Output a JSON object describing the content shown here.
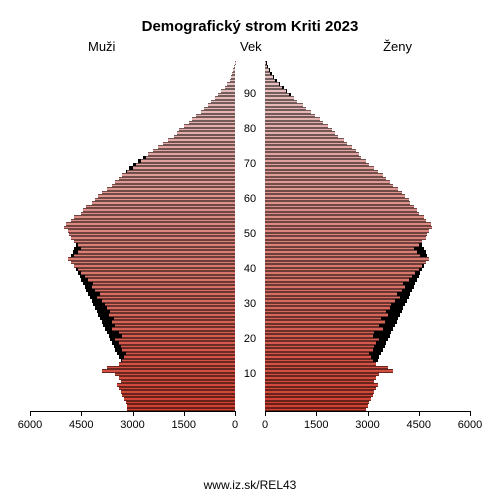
{
  "title": "Demografický strom Kriti 2023",
  "labels": {
    "left": "Muži",
    "center": "Vek",
    "right": "Ženy"
  },
  "source": "www.iz.sk/REL43",
  "chart": {
    "type": "population-pyramid",
    "x_max": 6000,
    "x_ticks": [
      0,
      1500,
      3000,
      4500,
      6000
    ],
    "y_ticks": [
      10,
      20,
      30,
      40,
      50,
      60,
      70,
      80,
      90
    ],
    "y_tick_fontsize": 11,
    "x_tick_fontsize": 11,
    "title_fontsize": 15,
    "label_fontsize": 13,
    "background_color": "#ffffff",
    "axis_color": "#000000",
    "shadow_color": "#000000",
    "gradient_top": "#e8c8c8",
    "gradient_bottom": "#d04030",
    "bar_border_color": "#000000",
    "ages": [
      {
        "age": 0,
        "m": 3150,
        "f": 2950,
        "sm": 2700,
        "sf": 2600
      },
      {
        "age": 1,
        "m": 3150,
        "f": 3000,
        "sm": 2750,
        "sf": 2650
      },
      {
        "age": 2,
        "m": 3200,
        "f": 3050,
        "sm": 2800,
        "sf": 2700
      },
      {
        "age": 3,
        "m": 3250,
        "f": 3100,
        "sm": 2800,
        "sf": 2750
      },
      {
        "age": 4,
        "m": 3300,
        "f": 3150,
        "sm": 2850,
        "sf": 2800
      },
      {
        "age": 5,
        "m": 3350,
        "f": 3200,
        "sm": 2900,
        "sf": 2850
      },
      {
        "age": 6,
        "m": 3400,
        "f": 3250,
        "sm": 2950,
        "sf": 2900
      },
      {
        "age": 7,
        "m": 3450,
        "f": 3300,
        "sm": 3000,
        "sf": 2950
      },
      {
        "age": 8,
        "m": 3350,
        "f": 3200,
        "sm": 3050,
        "sf": 3000
      },
      {
        "age": 9,
        "m": 3400,
        "f": 3250,
        "sm": 3100,
        "sf": 3050
      },
      {
        "age": 10,
        "m": 3500,
        "f": 3350,
        "sm": 3150,
        "sf": 3100
      },
      {
        "age": 11,
        "m": 3900,
        "f": 3750,
        "sm": 3200,
        "sf": 3150
      },
      {
        "age": 12,
        "m": 3750,
        "f": 3600,
        "sm": 3250,
        "sf": 3200
      },
      {
        "age": 13,
        "m": 3400,
        "f": 3250,
        "sm": 3300,
        "sf": 3250
      },
      {
        "age": 14,
        "m": 3300,
        "f": 3150,
        "sm": 3350,
        "sf": 3300
      },
      {
        "age": 15,
        "m": 3250,
        "f": 3100,
        "sm": 3400,
        "sf": 3350
      },
      {
        "age": 16,
        "m": 3200,
        "f": 3050,
        "sm": 3450,
        "sf": 3400
      },
      {
        "age": 17,
        "m": 3300,
        "f": 3150,
        "sm": 3500,
        "sf": 3450
      },
      {
        "age": 18,
        "m": 3350,
        "f": 3200,
        "sm": 3550,
        "sf": 3500
      },
      {
        "age": 19,
        "m": 3400,
        "f": 3250,
        "sm": 3600,
        "sf": 3550
      },
      {
        "age": 20,
        "m": 3500,
        "f": 3350,
        "sm": 3650,
        "sf": 3600
      },
      {
        "age": 21,
        "m": 3300,
        "f": 3150,
        "sm": 3700,
        "sf": 3650
      },
      {
        "age": 22,
        "m": 3400,
        "f": 3200,
        "sm": 3750,
        "sf": 3700
      },
      {
        "age": 23,
        "m": 3600,
        "f": 3450,
        "sm": 3800,
        "sf": 3750
      },
      {
        "age": 24,
        "m": 3500,
        "f": 3350,
        "sm": 3850,
        "sf": 3800
      },
      {
        "age": 25,
        "m": 3600,
        "f": 3500,
        "sm": 3900,
        "sf": 3850
      },
      {
        "age": 26,
        "m": 3550,
        "f": 3400,
        "sm": 3950,
        "sf": 3900
      },
      {
        "age": 27,
        "m": 3700,
        "f": 3600,
        "sm": 4000,
        "sf": 3950
      },
      {
        "age": 28,
        "m": 3650,
        "f": 3550,
        "sm": 4050,
        "sf": 4000
      },
      {
        "age": 29,
        "m": 3750,
        "f": 3650,
        "sm": 4100,
        "sf": 4050
      },
      {
        "age": 30,
        "m": 3800,
        "f": 3700,
        "sm": 4150,
        "sf": 4100
      },
      {
        "age": 31,
        "m": 3900,
        "f": 3800,
        "sm": 4200,
        "sf": 4150
      },
      {
        "age": 32,
        "m": 4050,
        "f": 3950,
        "sm": 4250,
        "sf": 4200
      },
      {
        "age": 33,
        "m": 3950,
        "f": 3850,
        "sm": 4300,
        "sf": 4250
      },
      {
        "age": 34,
        "m": 4100,
        "f": 4000,
        "sm": 4350,
        "sf": 4300
      },
      {
        "age": 35,
        "m": 4200,
        "f": 4100,
        "sm": 4400,
        "sf": 4350
      },
      {
        "age": 36,
        "m": 4150,
        "f": 4050,
        "sm": 4450,
        "sf": 4400
      },
      {
        "age": 37,
        "m": 4300,
        "f": 4200,
        "sm": 4500,
        "sf": 4450
      },
      {
        "age": 38,
        "m": 4400,
        "f": 4300,
        "sm": 4550,
        "sf": 4500
      },
      {
        "age": 39,
        "m": 4500,
        "f": 4400,
        "sm": 4600,
        "sf": 4550
      },
      {
        "age": 40,
        "m": 4600,
        "f": 4500,
        "sm": 4650,
        "sf": 4600
      },
      {
        "age": 41,
        "m": 4700,
        "f": 4600,
        "sm": 4700,
        "sf": 4650
      },
      {
        "age": 42,
        "m": 4800,
        "f": 4700,
        "sm": 4750,
        "sf": 4700
      },
      {
        "age": 43,
        "m": 4900,
        "f": 4800,
        "sm": 4800,
        "sf": 4750
      },
      {
        "age": 44,
        "m": 4700,
        "f": 4550,
        "sm": 4800,
        "sf": 4750
      },
      {
        "age": 45,
        "m": 4600,
        "f": 4450,
        "sm": 4750,
        "sf": 4700
      },
      {
        "age": 46,
        "m": 4500,
        "f": 4350,
        "sm": 4700,
        "sf": 4650
      },
      {
        "age": 47,
        "m": 4600,
        "f": 4500,
        "sm": 4650,
        "sf": 4600
      },
      {
        "age": 48,
        "m": 4700,
        "f": 4600,
        "sm": 4600,
        "sf": 4550
      },
      {
        "age": 49,
        "m": 4800,
        "f": 4700,
        "sm": 4550,
        "sf": 4500
      },
      {
        "age": 50,
        "m": 4850,
        "f": 4750,
        "sm": 4500,
        "sf": 4450
      },
      {
        "age": 51,
        "m": 4900,
        "f": 4800,
        "sm": 4450,
        "sf": 4400
      },
      {
        "age": 52,
        "m": 5000,
        "f": 4900,
        "sm": 4400,
        "sf": 4350
      },
      {
        "age": 53,
        "m": 4950,
        "f": 4850,
        "sm": 4350,
        "sf": 4300
      },
      {
        "age": 54,
        "m": 4800,
        "f": 4700,
        "sm": 4300,
        "sf": 4250
      },
      {
        "age": 55,
        "m": 4700,
        "f": 4650,
        "sm": 4250,
        "sf": 4200
      },
      {
        "age": 56,
        "m": 4500,
        "f": 4500,
        "sm": 4200,
        "sf": 4150
      },
      {
        "age": 57,
        "m": 4450,
        "f": 4450,
        "sm": 4150,
        "sf": 4100
      },
      {
        "age": 58,
        "m": 4350,
        "f": 4350,
        "sm": 4100,
        "sf": 4050
      },
      {
        "age": 59,
        "m": 4200,
        "f": 4250,
        "sm": 4050,
        "sf": 4000
      },
      {
        "age": 60,
        "m": 4100,
        "f": 4200,
        "sm": 4000,
        "sf": 3950
      },
      {
        "age": 61,
        "m": 4000,
        "f": 4100,
        "sm": 3900,
        "sf": 3850
      },
      {
        "age": 62,
        "m": 3900,
        "f": 4000,
        "sm": 3800,
        "sf": 3750
      },
      {
        "age": 63,
        "m": 3750,
        "f": 3900,
        "sm": 3700,
        "sf": 3650
      },
      {
        "age": 64,
        "m": 3600,
        "f": 3750,
        "sm": 3600,
        "sf": 3550
      },
      {
        "age": 65,
        "m": 3500,
        "f": 3650,
        "sm": 3500,
        "sf": 3450
      },
      {
        "age": 66,
        "m": 3400,
        "f": 3550,
        "sm": 3400,
        "sf": 3350
      },
      {
        "age": 67,
        "m": 3300,
        "f": 3450,
        "sm": 3300,
        "sf": 3250
      },
      {
        "age": 68,
        "m": 3150,
        "f": 3300,
        "sm": 3200,
        "sf": 3150
      },
      {
        "age": 69,
        "m": 3000,
        "f": 3200,
        "sm": 3100,
        "sf": 3050
      },
      {
        "age": 70,
        "m": 2900,
        "f": 3050,
        "sm": 3000,
        "sf": 2950
      },
      {
        "age": 71,
        "m": 2750,
        "f": 2950,
        "sm": 2850,
        "sf": 2800
      },
      {
        "age": 72,
        "m": 2600,
        "f": 2800,
        "sm": 2700,
        "sf": 2650
      },
      {
        "age": 73,
        "m": 2550,
        "f": 2750,
        "sm": 2550,
        "sf": 2500
      },
      {
        "age": 74,
        "m": 2400,
        "f": 2650,
        "sm": 2400,
        "sf": 2350
      },
      {
        "age": 75,
        "m": 2250,
        "f": 2550,
        "sm": 2250,
        "sf": 2250
      },
      {
        "age": 76,
        "m": 2100,
        "f": 2400,
        "sm": 2100,
        "sf": 2150
      },
      {
        "age": 77,
        "m": 1950,
        "f": 2300,
        "sm": 1950,
        "sf": 2050
      },
      {
        "age": 78,
        "m": 1800,
        "f": 2150,
        "sm": 1800,
        "sf": 1950
      },
      {
        "age": 79,
        "m": 1700,
        "f": 2050,
        "sm": 1650,
        "sf": 1850
      },
      {
        "age": 80,
        "m": 1650,
        "f": 1950,
        "sm": 1500,
        "sf": 1750
      },
      {
        "age": 81,
        "m": 1500,
        "f": 1850,
        "sm": 1350,
        "sf": 1650
      },
      {
        "age": 82,
        "m": 1350,
        "f": 1700,
        "sm": 1200,
        "sf": 1550
      },
      {
        "age": 83,
        "m": 1250,
        "f": 1600,
        "sm": 1050,
        "sf": 1450
      },
      {
        "age": 84,
        "m": 1150,
        "f": 1450,
        "sm": 900,
        "sf": 1350
      },
      {
        "age": 85,
        "m": 1000,
        "f": 1350,
        "sm": 800,
        "sf": 1250
      },
      {
        "age": 86,
        "m": 900,
        "f": 1200,
        "sm": 700,
        "sf": 1150
      },
      {
        "age": 87,
        "m": 800,
        "f": 1100,
        "sm": 600,
        "sf": 1050
      },
      {
        "age": 88,
        "m": 700,
        "f": 950,
        "sm": 500,
        "sf": 950
      },
      {
        "age": 89,
        "m": 600,
        "f": 850,
        "sm": 400,
        "sf": 850
      },
      {
        "age": 90,
        "m": 500,
        "f": 700,
        "sm": 320,
        "sf": 750
      },
      {
        "age": 91,
        "m": 400,
        "f": 600,
        "sm": 260,
        "sf": 650
      },
      {
        "age": 92,
        "m": 300,
        "f": 500,
        "sm": 200,
        "sf": 550
      },
      {
        "age": 93,
        "m": 220,
        "f": 400,
        "sm": 150,
        "sf": 450
      },
      {
        "age": 94,
        "m": 160,
        "f": 300,
        "sm": 110,
        "sf": 350
      },
      {
        "age": 95,
        "m": 120,
        "f": 220,
        "sm": 80,
        "sf": 270
      },
      {
        "age": 96,
        "m": 80,
        "f": 160,
        "sm": 55,
        "sf": 200
      },
      {
        "age": 97,
        "m": 50,
        "f": 110,
        "sm": 35,
        "sf": 140
      },
      {
        "age": 98,
        "m": 30,
        "f": 70,
        "sm": 20,
        "sf": 90
      },
      {
        "age": 99,
        "m": 15,
        "f": 40,
        "sm": 10,
        "sf": 55
      }
    ]
  }
}
